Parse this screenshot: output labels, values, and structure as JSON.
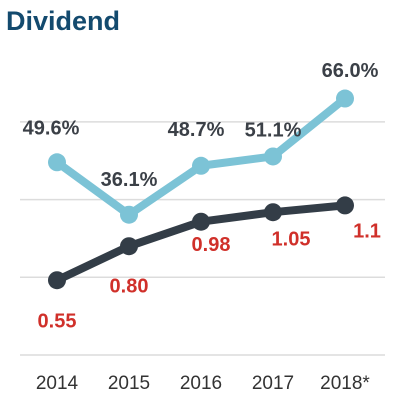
{
  "chart_data": {
    "type": "line",
    "title": "Dividend",
    "categories": [
      "2014",
      "2015",
      "2016",
      "2017",
      "2018*"
    ],
    "series": [
      {
        "color": "#7cc3d6",
        "values": [
          49.6,
          36.1,
          48.7,
          51.1,
          66.0
        ],
        "value_labels": [
          "49.6%",
          "36.1%",
          "48.7%",
          "51.1%",
          "66.0%"
        ],
        "label_color": "#3b4047"
      },
      {
        "color": "#333d47",
        "values": [
          0.55,
          0.8,
          0.98,
          1.05,
          1.1
        ],
        "value_labels": [
          "0.55",
          "0.80",
          "0.98",
          "1.05",
          "1.1"
        ],
        "label_color": "#d0302a",
        "axis": "y2"
      }
    ],
    "ylim": [
      0,
      70
    ],
    "yticks": [
      0,
      20,
      40,
      60
    ],
    "y2lim": [
      0,
      2
    ],
    "grid": true
  }
}
